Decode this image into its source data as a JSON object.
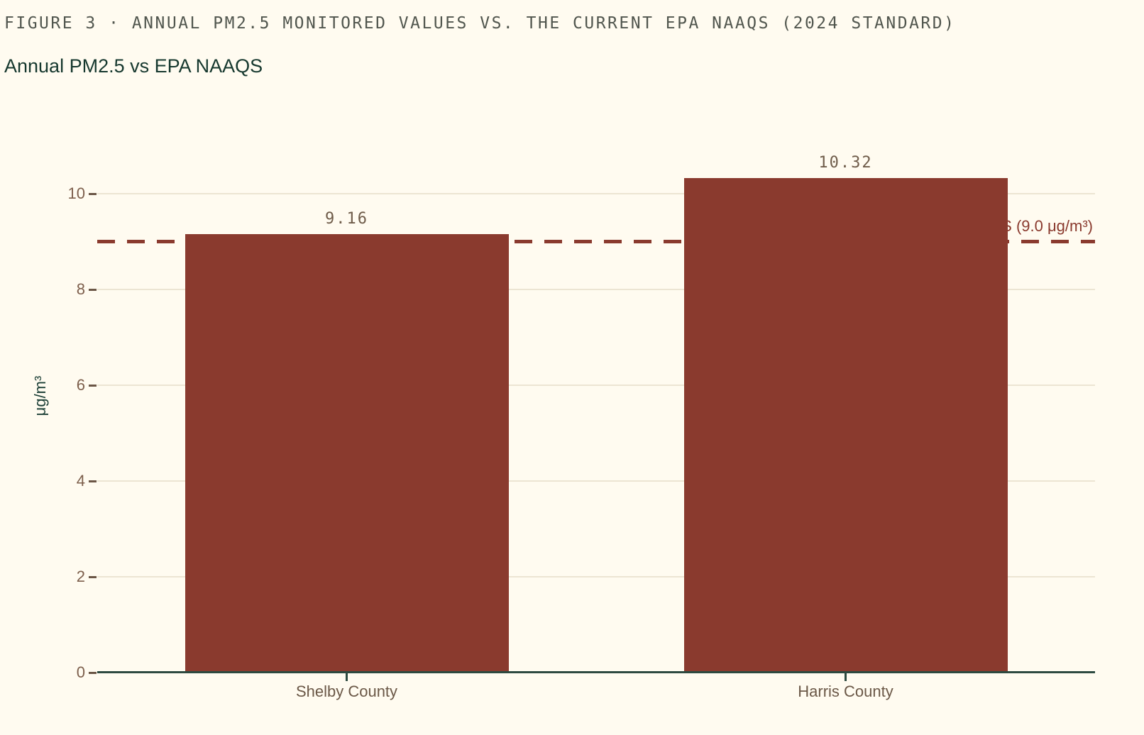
{
  "header": {
    "figure_heading": "FIGURE 3 · ANNUAL PM2.5 MONITORED VALUES VS. THE CURRENT EPA NAAQS (2024 STANDARD)",
    "chart_title": "Annual PM2.5 vs EPA NAAQS"
  },
  "chart_data": {
    "type": "bar",
    "title": "Annual PM2.5 vs EPA NAAQS",
    "categories": [
      "Shelby County",
      "Harris County"
    ],
    "values": [
      9.16,
      10.32
    ],
    "value_labels": [
      "9.16",
      "10.32"
    ],
    "xlabel": "",
    "ylabel": "μg/m³",
    "ylim": [
      0,
      10.9
    ],
    "yticks": [
      0,
      2,
      4,
      6,
      8,
      10
    ],
    "grid": "horizontal",
    "legend": "none",
    "bar_color": "#8a3a2e",
    "reference_line": {
      "value": 9.0,
      "style": "dashed",
      "color": "#8a3a2e",
      "label": "NAAQS (9.0 μg/m³)",
      "label_visible_part": "S (9.0 μg/m³)",
      "label_note": "label is right-aligned at plot edge and partially hidden behind the Harris County bar"
    },
    "colors": {
      "background": "#fffbf0",
      "gridline": "#ece5d3",
      "axis_line": "#2d4a40",
      "y_tick_label": "#7d5f4c",
      "x_category_label": "#6b5847",
      "value_label": "#6f5c4a",
      "figure_heading": "#51564e",
      "chart_title": "#16382e",
      "y_axis_title": "#1d4037"
    }
  }
}
